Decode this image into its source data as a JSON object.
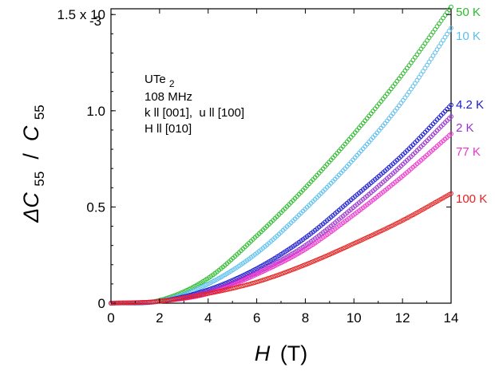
{
  "chart_data": {
    "type": "scatter",
    "title": "",
    "xlabel": "H (T)",
    "ylabel": "ΔC55 / C55",
    "x_axis": {
      "var": "H",
      "unit": "(T)",
      "range": [
        0,
        14
      ],
      "ticks": [
        0,
        2,
        4,
        6,
        8,
        10,
        12,
        14
      ],
      "tick_labels": [
        "0",
        "2",
        "4",
        "6",
        "8",
        "10",
        "12",
        "14"
      ]
    },
    "y_axis": {
      "title_parts": [
        "ΔC",
        "55",
        " / ",
        "C",
        "55"
      ],
      "range": [
        0,
        0.00153
      ],
      "ticks": [
        0,
        0.0005,
        0.001,
        0.0015
      ],
      "tick_labels": [
        "0",
        "0.5",
        "1.0",
        "1.5 x 10"
      ],
      "scale_exponent": "-3"
    },
    "annotation": {
      "line1_main": "UTe",
      "line1_sub": "2",
      "lines": [
        "108 MHz",
        "k ll [001],  u ll [100]",
        "H ll [010]"
      ]
    },
    "series": [
      {
        "name": "50 K",
        "color": "#2dbb2d",
        "x": [
          0,
          2,
          4,
          6,
          8,
          10,
          12,
          14
        ],
        "y": [
          0.0,
          1.5e-05,
          0.00013,
          0.00035,
          0.0006,
          0.00088,
          0.00119,
          0.00154
        ]
      },
      {
        "name": "10 K",
        "color": "#5bbfee",
        "x": [
          0,
          2,
          4,
          6,
          8,
          10,
          12,
          14
        ],
        "y": [
          0.0,
          1e-05,
          0.0001,
          0.00026,
          0.00049,
          0.00075,
          0.00105,
          0.00143
        ]
      },
      {
        "name": "4.2 K",
        "color": "#1a1ad0",
        "x": [
          0,
          2,
          4,
          6,
          8,
          10,
          12,
          14
        ],
        "y": [
          0.0,
          1e-05,
          7e-05,
          0.00018,
          0.00034,
          0.00055,
          0.00077,
          0.00103
        ]
      },
      {
        "name": "2 K",
        "color": "#9932cc",
        "x": [
          0,
          2,
          4,
          6,
          8,
          10,
          12,
          14
        ],
        "y": [
          0.0,
          1e-05,
          6e-05,
          0.00016,
          0.0003,
          0.0005,
          0.00072,
          0.00097
        ]
      },
      {
        "name": "77 K",
        "color": "#ee33cc",
        "x": [
          0,
          2,
          4,
          6,
          8,
          10,
          12,
          14
        ],
        "y": [
          0.0,
          1e-05,
          5e-05,
          0.00015,
          0.00028,
          0.00046,
          0.00066,
          0.00088
        ]
      },
      {
        "name": "100 K",
        "color": "#e52222",
        "x": [
          0,
          2,
          4,
          6,
          8,
          10,
          12,
          14
        ],
        "y": [
          0.0,
          1e-05,
          5e-05,
          0.00011,
          0.0002,
          0.00031,
          0.00043,
          0.00057
        ]
      }
    ]
  }
}
